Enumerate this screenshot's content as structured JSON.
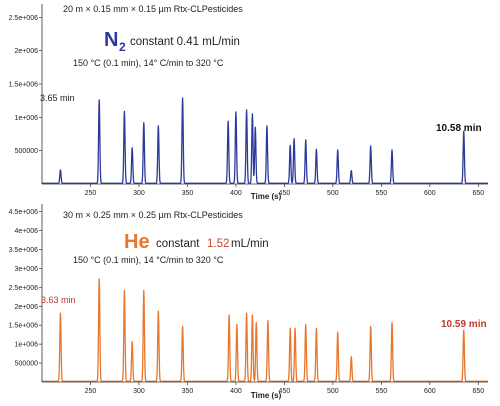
{
  "chart_data": [
    {
      "type": "line",
      "header": "20 m × 0.15 mm × 0.15 µm Rtx-CLPesticides",
      "carrier_gas": "N",
      "carrier_subscript": "2",
      "flow_text": "constant 0.41 mL/min",
      "oven_program": "150 °C (0.1 min), 14° C/min to 320 °C",
      "first_peak_label": "3.65 min",
      "last_peak_label": "10.58 min",
      "xlabel": "Time (s)",
      "ylabel": "",
      "xlim": [
        200,
        660
      ],
      "ylim": [
        0,
        2700000
      ],
      "x_ticks": [
        250,
        300,
        350,
        400,
        450,
        500,
        550,
        600,
        650
      ],
      "y_ticks": [
        500000,
        1000000,
        1500000,
        2000000,
        2500000
      ],
      "y_tick_labels": [
        "500000",
        "1e+006",
        "1.5e+006",
        "2e+006",
        "2.5e+006"
      ],
      "series": [
        {
          "color": "#2b3a9a",
          "peaks_x": [
            219,
            259,
            285,
            293,
            305,
            320,
            345,
            392,
            400,
            411,
            417,
            420,
            432,
            456,
            460,
            472,
            483,
            505,
            519,
            539,
            561,
            635
          ],
          "peaks_y": [
            200000,
            1250000,
            1080000,
            530000,
            910000,
            860000,
            1280000,
            930000,
            1070000,
            1100000,
            1040000,
            840000,
            860000,
            570000,
            670000,
            650000,
            510000,
            500000,
            190000,
            560000,
            500000,
            780000
          ]
        }
      ]
    },
    {
      "type": "line",
      "header": "30 m × 0.25 mm × 0.25 µm Rtx-CLPesticides",
      "carrier_gas": "He",
      "flow_prefix": "constant",
      "flow_value": "1.52",
      "flow_unit": "mL/min",
      "oven_program": "150 °C (0.1 min), 14 °C/min to 320 °C",
      "first_peak_label": "3.63 min",
      "last_peak_label": "10.59 min",
      "xlabel": "Time (s)",
      "ylabel": "",
      "xlim": [
        200,
        660
      ],
      "ylim": [
        0,
        4700000
      ],
      "x_ticks": [
        250,
        300,
        350,
        400,
        450,
        500,
        550,
        600,
        650
      ],
      "y_ticks": [
        500000,
        1000000,
        1500000,
        2000000,
        2500000,
        3000000,
        3500000,
        4000000,
        4500000
      ],
      "y_tick_labels": [
        "500000",
        "1e+006",
        "1.5e+006",
        "2e+006",
        "2.5e+006",
        "3e+006",
        "3.5e+006",
        "4e+006",
        "4.5e+006"
      ],
      "series": [
        {
          "color": "#e8762b",
          "peaks_x": [
            219,
            259,
            285,
            293,
            305,
            320,
            345,
            393,
            401,
            411,
            417,
            421,
            433,
            456,
            461,
            472,
            483,
            505,
            519,
            539,
            561,
            635
          ],
          "peaks_y": [
            1800000,
            2700000,
            2400000,
            1050000,
            2400000,
            1850000,
            1450000,
            1750000,
            1500000,
            1800000,
            1750000,
            1550000,
            1600000,
            1400000,
            1400000,
            1500000,
            1400000,
            1300000,
            650000,
            1450000,
            1550000,
            1350000
          ]
        }
      ]
    }
  ]
}
